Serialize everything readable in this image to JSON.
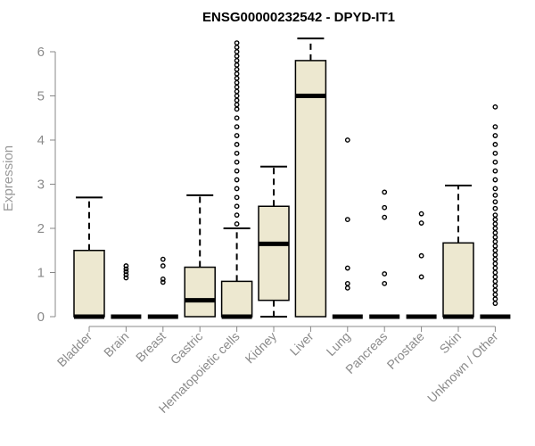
{
  "chart_data": {
    "type": "boxplot",
    "title": "ENSG00000232542 - DPYD-IT1",
    "xlabel": "",
    "ylabel": "Expression",
    "ylim": [
      0,
      6.3
    ],
    "yticks": [
      0,
      1,
      2,
      3,
      4,
      5,
      6
    ],
    "box_color": "#ede8d0",
    "categories": [
      "Bladder",
      "Brain",
      "Breast",
      "Gastric",
      "Hematopoietic cells",
      "Kidney",
      "Liver",
      "Lung",
      "Pancreas",
      "Prostate",
      "Skin",
      "Unknown / Other"
    ],
    "boxes": [
      {
        "name": "Bladder",
        "min": 0,
        "q1": 0,
        "median": 0,
        "q3": 1.5,
        "max": 2.7,
        "outliers": []
      },
      {
        "name": "Brain",
        "min": 0,
        "q1": 0,
        "median": 0,
        "q3": 0,
        "max": 0,
        "outliers": [
          0.88,
          0.95,
          1.02,
          1.08,
          1.15
        ]
      },
      {
        "name": "Breast",
        "min": 0,
        "q1": 0,
        "median": 0,
        "q3": 0,
        "max": 0,
        "outliers": [
          0.78,
          0.85,
          1.15,
          1.3
        ]
      },
      {
        "name": "Gastric",
        "min": 0,
        "q1": 0,
        "median": 0.37,
        "q3": 1.12,
        "max": 2.75,
        "outliers": []
      },
      {
        "name": "Hematopoietic cells",
        "min": 0,
        "q1": 0,
        "median": 0,
        "q3": 0.8,
        "max": 2.0,
        "outliers": [
          2.1,
          2.3,
          2.5,
          2.7,
          2.9,
          3.1,
          3.3,
          3.5,
          3.7,
          3.9,
          4.1,
          4.3,
          4.5,
          4.7,
          4.8,
          4.9,
          5.0,
          5.1,
          5.2,
          5.3,
          5.4,
          5.5,
          5.6,
          5.7,
          5.8,
          5.9,
          6.0,
          6.1,
          6.2
        ]
      },
      {
        "name": "Kidney",
        "min": 0,
        "q1": 0.37,
        "median": 1.65,
        "q3": 2.5,
        "max": 3.4,
        "outliers": []
      },
      {
        "name": "Liver",
        "min": 0,
        "q1": 0,
        "median": 5.0,
        "q3": 5.8,
        "max": 6.3,
        "outliers": []
      },
      {
        "name": "Lung",
        "min": 0,
        "q1": 0,
        "median": 0,
        "q3": 0,
        "max": 0,
        "outliers": [
          0.65,
          0.75,
          1.1,
          2.2,
          4.0
        ]
      },
      {
        "name": "Pancreas",
        "min": 0,
        "q1": 0,
        "median": 0,
        "q3": 0,
        "max": 0,
        "outliers": [
          0.75,
          0.97,
          2.25,
          2.47,
          2.82
        ]
      },
      {
        "name": "Prostate",
        "min": 0,
        "q1": 0,
        "median": 0,
        "q3": 0,
        "max": 0,
        "outliers": [
          0.9,
          1.38,
          2.12,
          2.33
        ]
      },
      {
        "name": "Skin",
        "min": 0,
        "q1": 0,
        "median": 0,
        "q3": 1.67,
        "max": 2.97,
        "outliers": []
      },
      {
        "name": "Unknown / Other",
        "min": 0,
        "q1": 0,
        "median": 0,
        "q3": 0,
        "max": 0,
        "outliers": [
          0.3,
          0.4,
          0.5,
          0.6,
          0.7,
          0.8,
          0.9,
          1.0,
          1.1,
          1.2,
          1.3,
          1.4,
          1.5,
          1.6,
          1.7,
          1.8,
          1.9,
          2.0,
          2.1,
          2.2,
          2.3,
          2.45,
          2.6,
          2.75,
          2.9,
          3.1,
          3.3,
          3.5,
          3.7,
          3.9,
          4.1,
          4.3,
          4.75
        ]
      }
    ]
  }
}
